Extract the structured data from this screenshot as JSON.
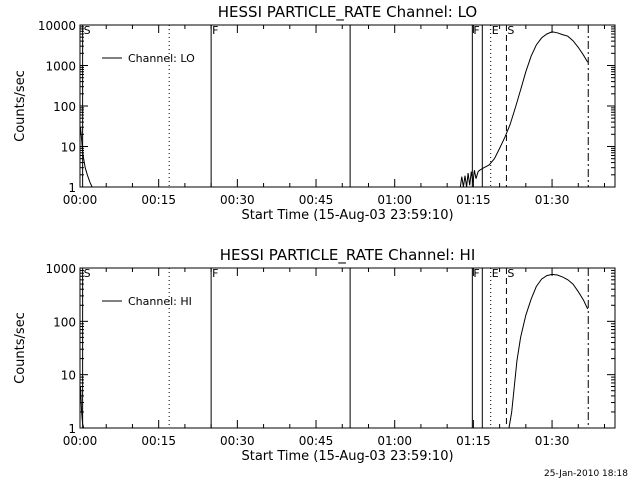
{
  "footer_date": "25-Jan-2010 18:18",
  "chart_data": [
    {
      "type": "line",
      "title": "HESSI PARTICLE_RATE Channel: LO",
      "xlabel": "Start Time (15-Aug-03 23:59:10)",
      "ylabel": "Counts/sec",
      "yscale": "log",
      "xlim_minutes": [
        0,
        102
      ],
      "ylim": [
        1,
        10000
      ],
      "x_ticks": [
        {
          "min": 0,
          "label": "00:00"
        },
        {
          "min": 15,
          "label": "00:15"
        },
        {
          "min": 30,
          "label": "00:30"
        },
        {
          "min": 45,
          "label": "00:45"
        },
        {
          "min": 60,
          "label": "01:00"
        },
        {
          "min": 75,
          "label": "01:15"
        },
        {
          "min": 90,
          "label": "01:30"
        }
      ],
      "y_ticks": [
        {
          "v": 1,
          "label": "1"
        },
        {
          "v": 10,
          "label": "10"
        },
        {
          "v": 100,
          "label": "100"
        },
        {
          "v": 1000,
          "label": "1000"
        },
        {
          "v": 10000,
          "label": "10000"
        }
      ],
      "legend": {
        "label": "Channel: LO",
        "position": "top-left"
      },
      "series": [
        {
          "name": "Channel: LO",
          "segments": [
            [
              [
                0.1,
                30
              ],
              [
                0.3,
                15
              ],
              [
                0.6,
                6
              ],
              [
                1.0,
                3
              ],
              [
                1.4,
                2
              ],
              [
                1.9,
                1.3
              ],
              [
                2.3,
                1
              ]
            ],
            [
              [
                72.5,
                1
              ],
              [
                72.8,
                1.8
              ],
              [
                73.1,
                1
              ],
              [
                73.4,
                1.9
              ],
              [
                73.7,
                1
              ],
              [
                74.0,
                2.2
              ],
              [
                74.3,
                1.1
              ],
              [
                74.6,
                2.4
              ],
              [
                74.9,
                1.3
              ],
              [
                75.2,
                2.6
              ],
              [
                75.5,
                1.6
              ],
              [
                75.9,
                2.4
              ],
              [
                76.2,
                2.6
              ],
              [
                77,
                3
              ],
              [
                78,
                3.5
              ],
              [
                79,
                5
              ],
              [
                80,
                9
              ],
              [
                81,
                17
              ],
              [
                82,
                35
              ],
              [
                83,
                90
              ],
              [
                84,
                250
              ],
              [
                85,
                700
              ],
              [
                86,
                1700
              ],
              [
                87,
                3200
              ],
              [
                88,
                4800
              ],
              [
                89,
                6000
              ],
              [
                90,
                6800
              ],
              [
                91,
                6400
              ],
              [
                92,
                5800
              ],
              [
                93,
                5300
              ],
              [
                94,
                4100
              ],
              [
                95,
                2800
              ],
              [
                96,
                1800
              ],
              [
                96.8,
                1200
              ]
            ]
          ]
        }
      ],
      "markers": [
        {
          "min": 0.5,
          "label": "S",
          "style": "solid"
        },
        {
          "min": 17,
          "label": "",
          "style": "dotted"
        },
        {
          "min": 25,
          "label": "F",
          "style": "solid"
        },
        {
          "min": 51.5,
          "label": "",
          "style": "solid"
        },
        {
          "min": 74.8,
          "label": "F",
          "style": "solid"
        },
        {
          "min": 76.7,
          "label": "",
          "style": "solid"
        },
        {
          "min": 78.3,
          "label": "E",
          "style": "dotted"
        },
        {
          "min": 81.3,
          "label": "S",
          "style": "dashed"
        },
        {
          "min": 96.9,
          "label": "",
          "style": "dashdot"
        }
      ]
    },
    {
      "type": "line",
      "title": "HESSI PARTICLE_RATE Channel: HI",
      "xlabel": "Start Time (15-Aug-03 23:59:10)",
      "ylabel": "Counts/sec",
      "yscale": "log",
      "xlim_minutes": [
        0,
        102
      ],
      "ylim": [
        1,
        1000
      ],
      "x_ticks": [
        {
          "min": 0,
          "label": "00:00"
        },
        {
          "min": 15,
          "label": "00:15"
        },
        {
          "min": 30,
          "label": "00:30"
        },
        {
          "min": 45,
          "label": "00:45"
        },
        {
          "min": 60,
          "label": "01:00"
        },
        {
          "min": 75,
          "label": "01:15"
        },
        {
          "min": 90,
          "label": "01:30"
        }
      ],
      "y_ticks": [
        {
          "v": 1,
          "label": "1"
        },
        {
          "v": 10,
          "label": "10"
        },
        {
          "v": 100,
          "label": "100"
        },
        {
          "v": 1000,
          "label": "1000"
        }
      ],
      "legend": {
        "label": "Channel: HI",
        "position": "top-left"
      },
      "series": [
        {
          "name": "Channel: HI",
          "segments": [
            [
              [
                0.1,
                6
              ],
              [
                0.3,
                2
              ],
              [
                0.5,
                1.2
              ],
              [
                0.7,
                1
              ]
            ],
            [
              [
                81.8,
                1
              ],
              [
                82.3,
                2
              ],
              [
                82.8,
                6
              ],
              [
                83.3,
                18
              ],
              [
                84,
                50
              ],
              [
                85,
                130
              ],
              [
                86,
                260
              ],
              [
                87,
                450
              ],
              [
                88,
                620
              ],
              [
                89,
                720
              ],
              [
                90,
                760
              ],
              [
                91,
                740
              ],
              [
                92,
                680
              ],
              [
                93,
                600
              ],
              [
                94,
                500
              ],
              [
                95,
                360
              ],
              [
                96,
                250
              ],
              [
                96.8,
                170
              ]
            ]
          ]
        }
      ],
      "markers": [
        {
          "min": 0.5,
          "label": "S",
          "style": "solid"
        },
        {
          "min": 17,
          "label": "",
          "style": "dotted"
        },
        {
          "min": 25,
          "label": "F",
          "style": "solid"
        },
        {
          "min": 51.5,
          "label": "",
          "style": "solid"
        },
        {
          "min": 74.8,
          "label": "F",
          "style": "solid"
        },
        {
          "min": 76.7,
          "label": "",
          "style": "solid"
        },
        {
          "min": 78.3,
          "label": "E",
          "style": "dotted"
        },
        {
          "min": 81.3,
          "label": "S",
          "style": "dashed"
        },
        {
          "min": 96.9,
          "label": "",
          "style": "dashdot"
        }
      ]
    }
  ]
}
